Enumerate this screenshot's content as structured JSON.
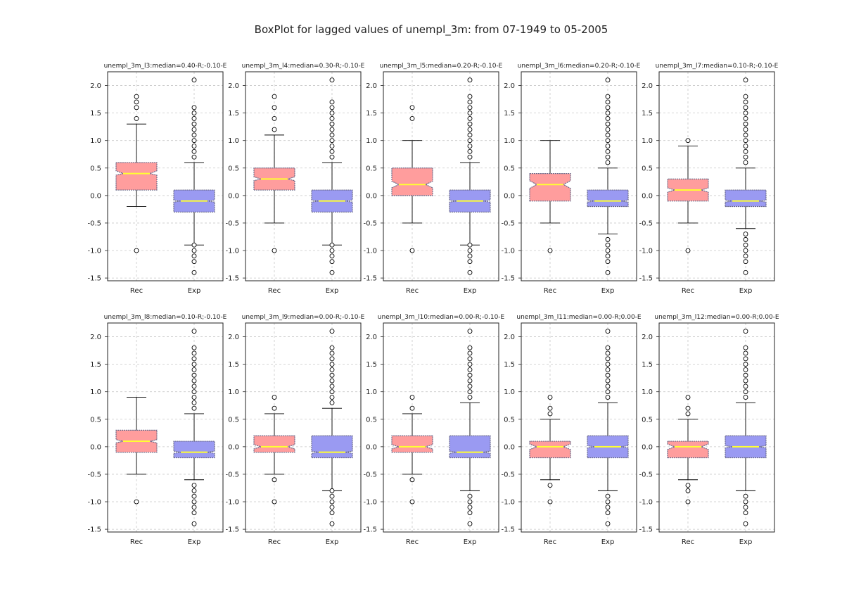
{
  "figure": {
    "title": "BoxPlot for lagged values of unempl_3m: from 07-1949 to 05-2005"
  },
  "colors": {
    "rec_box": "#ff9d9d",
    "exp_box": "#9a9af2",
    "median": "#ffff33",
    "box_edge": "#6a6a8a",
    "grid": "#c8c8c8",
    "axes": "#222222"
  },
  "chart_data": [
    {
      "type": "box",
      "title": "unempl_3m_l3:median=0.40-R;-0.10-E",
      "categories": [
        "Rec",
        "Exp"
      ],
      "ylim": [
        -1.55,
        2.25
      ],
      "yticks": [
        "-1.5",
        "-1.0",
        "-0.5",
        "0.0",
        "0.5",
        "1.0",
        "1.5",
        "2.0"
      ],
      "grid": true,
      "boxes": [
        {
          "name": "Rec",
          "q1": 0.1,
          "median": 0.4,
          "q3": 0.6,
          "whisker_low": -0.2,
          "whisker_high": 1.3,
          "notch_low": 0.37,
          "notch_high": 0.45,
          "outliers": [
            -1.0,
            1.4,
            1.6,
            1.7,
            1.8
          ]
        },
        {
          "name": "Exp",
          "q1": -0.3,
          "median": -0.1,
          "q3": 0.1,
          "whisker_low": -0.9,
          "whisker_high": 0.6,
          "notch_low": -0.12,
          "notch_high": -0.08,
          "outliers": [
            -1.4,
            -1.2,
            -1.1,
            -1.0,
            -0.9,
            0.7,
            0.8,
            0.9,
            1.0,
            1.1,
            1.2,
            1.3,
            1.4,
            1.5,
            1.6,
            2.1
          ]
        }
      ]
    },
    {
      "type": "box",
      "title": "unempl_3m_l4:median=0.30-R;-0.10-E",
      "categories": [
        "Rec",
        "Exp"
      ],
      "ylim": [
        -1.55,
        2.25
      ],
      "yticks": [
        "-1.5",
        "-1.0",
        "-0.5",
        "0.0",
        "0.5",
        "1.0",
        "1.5",
        "2.0"
      ],
      "grid": true,
      "boxes": [
        {
          "name": "Rec",
          "q1": 0.1,
          "median": 0.3,
          "q3": 0.5,
          "whisker_low": -0.5,
          "whisker_high": 1.1,
          "notch_low": 0.27,
          "notch_high": 0.34,
          "outliers": [
            -1.0,
            1.2,
            1.4,
            1.6,
            1.8
          ]
        },
        {
          "name": "Exp",
          "q1": -0.3,
          "median": -0.1,
          "q3": 0.1,
          "whisker_low": -0.9,
          "whisker_high": 0.6,
          "notch_low": -0.12,
          "notch_high": -0.08,
          "outliers": [
            -1.4,
            -1.2,
            -1.1,
            -1.0,
            -0.9,
            0.7,
            0.8,
            0.9,
            1.0,
            1.1,
            1.2,
            1.3,
            1.4,
            1.5,
            1.6,
            1.7,
            2.1
          ]
        }
      ]
    },
    {
      "type": "box",
      "title": "unempl_3m_l5:median=0.20-R;-0.10-E",
      "categories": [
        "Rec",
        "Exp"
      ],
      "ylim": [
        -1.55,
        2.25
      ],
      "yticks": [
        "-1.5",
        "-1.0",
        "-0.5",
        "0.0",
        "0.5",
        "1.0",
        "1.5",
        "2.0"
      ],
      "grid": true,
      "boxes": [
        {
          "name": "Rec",
          "q1": 0.0,
          "median": 0.2,
          "q3": 0.5,
          "whisker_low": -0.5,
          "whisker_high": 1.0,
          "notch_low": 0.14,
          "notch_high": 0.26,
          "outliers": [
            -1.0,
            1.4,
            1.6
          ]
        },
        {
          "name": "Exp",
          "q1": -0.3,
          "median": -0.1,
          "q3": 0.1,
          "whisker_low": -0.9,
          "whisker_high": 0.6,
          "notch_low": -0.12,
          "notch_high": -0.08,
          "outliers": [
            -1.4,
            -1.2,
            -1.1,
            -1.0,
            -0.9,
            0.7,
            0.8,
            0.9,
            1.0,
            1.1,
            1.2,
            1.3,
            1.4,
            1.5,
            1.6,
            1.7,
            1.8,
            2.1
          ]
        }
      ]
    },
    {
      "type": "box",
      "title": "unempl_3m_l6:median=0.20-R;-0.10-E",
      "categories": [
        "Rec",
        "Exp"
      ],
      "ylim": [
        -1.55,
        2.25
      ],
      "yticks": [
        "-1.5",
        "-1.0",
        "-0.5",
        "0.0",
        "0.5",
        "1.0",
        "1.5",
        "2.0"
      ],
      "grid": true,
      "boxes": [
        {
          "name": "Rec",
          "q1": -0.1,
          "median": 0.2,
          "q3": 0.4,
          "whisker_low": -0.5,
          "whisker_high": 1.0,
          "notch_low": 0.13,
          "notch_high": 0.27,
          "outliers": [
            -1.0
          ]
        },
        {
          "name": "Exp",
          "q1": -0.2,
          "median": -0.1,
          "q3": 0.1,
          "whisker_low": -0.7,
          "whisker_high": 0.5,
          "notch_low": -0.12,
          "notch_high": -0.08,
          "outliers": [
            -1.4,
            -1.2,
            -1.1,
            -1.0,
            -0.9,
            -0.8,
            0.6,
            0.7,
            0.8,
            0.9,
            1.0,
            1.1,
            1.2,
            1.3,
            1.4,
            1.5,
            1.6,
            1.7,
            1.8,
            2.1
          ]
        }
      ]
    },
    {
      "type": "box",
      "title": "unempl_3m_l7:median=0.10-R;-0.10-E",
      "categories": [
        "Rec",
        "Exp"
      ],
      "ylim": [
        -1.55,
        2.25
      ],
      "yticks": [
        "-1.5",
        "-1.0",
        "-0.5",
        "0.0",
        "0.5",
        "1.0",
        "1.5",
        "2.0"
      ],
      "grid": true,
      "boxes": [
        {
          "name": "Rec",
          "q1": -0.1,
          "median": 0.1,
          "q3": 0.3,
          "whisker_low": -0.5,
          "whisker_high": 0.9,
          "notch_low": 0.06,
          "notch_high": 0.14,
          "outliers": [
            -1.0,
            1.0
          ]
        },
        {
          "name": "Exp",
          "q1": -0.2,
          "median": -0.1,
          "q3": 0.1,
          "whisker_low": -0.6,
          "whisker_high": 0.5,
          "notch_low": -0.12,
          "notch_high": -0.08,
          "outliers": [
            -1.4,
            -1.2,
            -1.1,
            -1.0,
            -0.9,
            -0.8,
            -0.7,
            0.6,
            0.7,
            0.8,
            0.9,
            1.0,
            1.1,
            1.2,
            1.3,
            1.4,
            1.5,
            1.6,
            1.7,
            1.8,
            2.1
          ]
        }
      ]
    },
    {
      "type": "box",
      "title": "unempl_3m_l8:median=0.10-R;-0.10-E",
      "categories": [
        "Rec",
        "Exp"
      ],
      "ylim": [
        -1.55,
        2.25
      ],
      "yticks": [
        "-1.5",
        "-1.0",
        "-0.5",
        "0.0",
        "0.5",
        "1.0",
        "1.5",
        "2.0"
      ],
      "grid": true,
      "boxes": [
        {
          "name": "Rec",
          "q1": -0.1,
          "median": 0.1,
          "q3": 0.3,
          "whisker_low": -0.5,
          "whisker_high": 0.9,
          "notch_low": 0.07,
          "notch_high": 0.13,
          "outliers": [
            -1.0
          ]
        },
        {
          "name": "Exp",
          "q1": -0.2,
          "median": -0.1,
          "q3": 0.1,
          "whisker_low": -0.6,
          "whisker_high": 0.6,
          "notch_low": -0.12,
          "notch_high": -0.08,
          "outliers": [
            -1.4,
            -1.2,
            -1.1,
            -1.0,
            -0.9,
            -0.8,
            -0.7,
            0.7,
            0.8,
            0.9,
            1.0,
            1.1,
            1.2,
            1.3,
            1.4,
            1.5,
            1.6,
            1.7,
            1.8,
            2.1
          ]
        }
      ]
    },
    {
      "type": "box",
      "title": "unempl_3m_l9:median=0.00-R;-0.10-E",
      "categories": [
        "Rec",
        "Exp"
      ],
      "ylim": [
        -1.55,
        2.25
      ],
      "yticks": [
        "-1.5",
        "-1.0",
        "-0.5",
        "0.0",
        "0.5",
        "1.0",
        "1.5",
        "2.0"
      ],
      "grid": true,
      "boxes": [
        {
          "name": "Rec",
          "q1": -0.1,
          "median": 0.0,
          "q3": 0.2,
          "whisker_low": -0.5,
          "whisker_high": 0.6,
          "notch_low": -0.04,
          "notch_high": 0.04,
          "outliers": [
            -1.0,
            -0.6,
            0.7,
            0.9
          ]
        },
        {
          "name": "Exp",
          "q1": -0.2,
          "median": -0.1,
          "q3": 0.2,
          "whisker_low": -0.8,
          "whisker_high": 0.7,
          "notch_low": -0.12,
          "notch_high": -0.08,
          "outliers": [
            -1.4,
            -1.2,
            -1.1,
            -1.0,
            -0.9,
            -0.8,
            0.8,
            0.9,
            1.0,
            1.1,
            1.2,
            1.3,
            1.4,
            1.5,
            1.6,
            1.7,
            1.8,
            2.1
          ]
        }
      ]
    },
    {
      "type": "box",
      "title": "unempl_3m_l10:median=0.00-R;-0.10-E",
      "categories": [
        "Rec",
        "Exp"
      ],
      "ylim": [
        -1.55,
        2.25
      ],
      "yticks": [
        "-1.5",
        "-1.0",
        "-0.5",
        "0.0",
        "0.5",
        "1.0",
        "1.5",
        "2.0"
      ],
      "grid": true,
      "boxes": [
        {
          "name": "Rec",
          "q1": -0.1,
          "median": 0.0,
          "q3": 0.2,
          "whisker_low": -0.5,
          "whisker_high": 0.6,
          "notch_low": -0.04,
          "notch_high": 0.04,
          "outliers": [
            -1.0,
            -0.6,
            0.7,
            0.9
          ]
        },
        {
          "name": "Exp",
          "q1": -0.2,
          "median": -0.1,
          "q3": 0.2,
          "whisker_low": -0.8,
          "whisker_high": 0.8,
          "notch_low": -0.12,
          "notch_high": -0.08,
          "outliers": [
            -1.4,
            -1.2,
            -1.1,
            -1.0,
            -0.9,
            0.9,
            1.0,
            1.1,
            1.2,
            1.3,
            1.4,
            1.5,
            1.6,
            1.7,
            1.8,
            2.1
          ]
        }
      ]
    },
    {
      "type": "box",
      "title": "unempl_3m_l11:median=0.00-R;0.00-E",
      "categories": [
        "Rec",
        "Exp"
      ],
      "ylim": [
        -1.55,
        2.25
      ],
      "yticks": [
        "-1.5",
        "-1.0",
        "-0.5",
        "0.0",
        "0.5",
        "1.0",
        "1.5",
        "2.0"
      ],
      "grid": true,
      "boxes": [
        {
          "name": "Rec",
          "q1": -0.2,
          "median": 0.0,
          "q3": 0.1,
          "whisker_low": -0.6,
          "whisker_high": 0.5,
          "notch_low": -0.05,
          "notch_high": 0.05,
          "outliers": [
            -1.0,
            -0.7,
            0.6,
            0.7,
            0.9
          ]
        },
        {
          "name": "Exp",
          "q1": -0.2,
          "median": 0.0,
          "q3": 0.2,
          "whisker_low": -0.8,
          "whisker_high": 0.8,
          "notch_low": -0.02,
          "notch_high": 0.02,
          "outliers": [
            -1.4,
            -1.2,
            -1.1,
            -1.0,
            -0.9,
            0.9,
            1.0,
            1.1,
            1.2,
            1.3,
            1.4,
            1.5,
            1.6,
            1.7,
            1.8,
            2.1
          ]
        }
      ]
    },
    {
      "type": "box",
      "title": "unempl_3m_l12:median=0.00-R;0.00-E",
      "categories": [
        "Rec",
        "Exp"
      ],
      "ylim": [
        -1.55,
        2.25
      ],
      "yticks": [
        "-1.5",
        "-1.0",
        "-0.5",
        "0.0",
        "0.5",
        "1.0",
        "1.5",
        "2.0"
      ],
      "grid": true,
      "boxes": [
        {
          "name": "Rec",
          "q1": -0.2,
          "median": 0.0,
          "q3": 0.1,
          "whisker_low": -0.6,
          "whisker_high": 0.5,
          "notch_low": -0.05,
          "notch_high": 0.05,
          "outliers": [
            -1.0,
            -0.8,
            -0.7,
            0.6,
            0.7,
            0.9
          ]
        },
        {
          "name": "Exp",
          "q1": -0.2,
          "median": 0.0,
          "q3": 0.2,
          "whisker_low": -0.8,
          "whisker_high": 0.8,
          "notch_low": -0.02,
          "notch_high": 0.02,
          "outliers": [
            -1.4,
            -1.2,
            -1.1,
            -1.0,
            -0.9,
            0.9,
            1.0,
            1.1,
            1.2,
            1.3,
            1.4,
            1.5,
            1.6,
            1.7,
            1.8,
            2.1
          ]
        }
      ]
    }
  ]
}
